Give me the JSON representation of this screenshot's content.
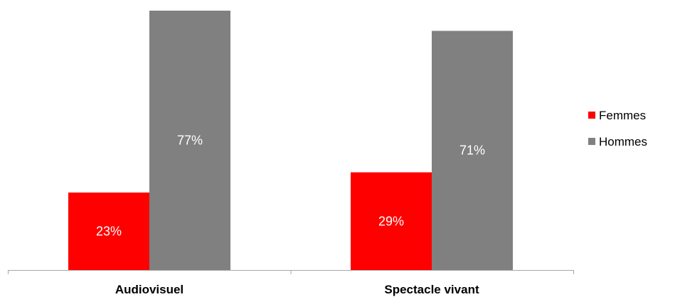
{
  "chart_data": {
    "type": "bar",
    "categories": [
      "Audiovisuel",
      "Spectacle vivant"
    ],
    "series": [
      {
        "name": "Femmes",
        "values": [
          23,
          29
        ],
        "labels": [
          "23%",
          "29%"
        ],
        "color": "#ff0000"
      },
      {
        "name": "Hommes",
        "values": [
          77,
          71
        ],
        "labels": [
          "77%",
          "71%"
        ],
        "color": "#808080"
      }
    ],
    "ylim": [
      0,
      77
    ],
    "grid": false,
    "legend_position": "right",
    "axis_color": "#a6a6a6"
  }
}
